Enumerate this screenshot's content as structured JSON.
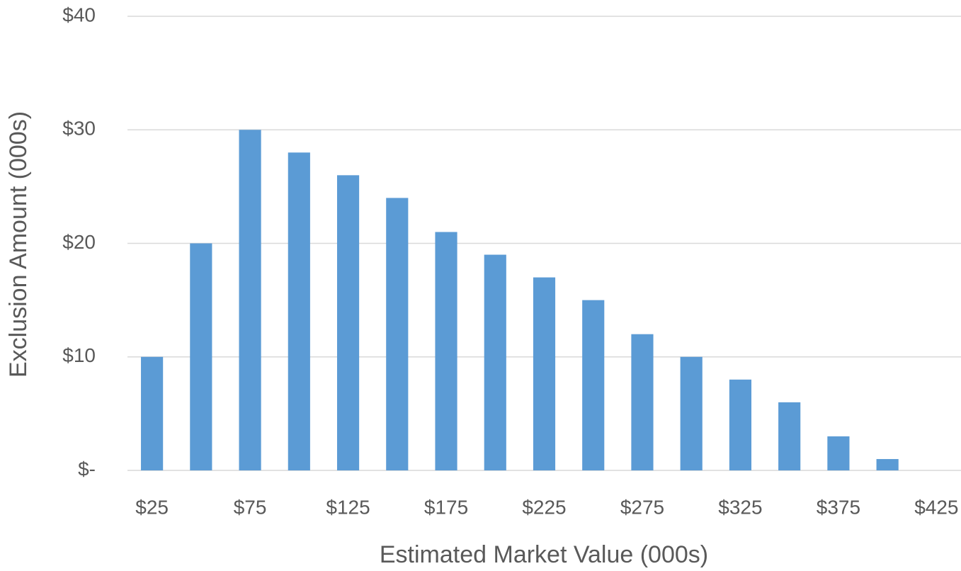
{
  "chart_data": {
    "type": "bar",
    "x_label": "Estimated Market Value (000s)",
    "y_label": "Exclusion Amount (000s)",
    "categories": [
      "$25",
      null,
      "$75",
      null,
      "$125",
      null,
      "$175",
      null,
      "$225",
      null,
      "$275",
      null,
      "$325",
      null,
      "$375",
      null,
      "$425"
    ],
    "values": [
      10,
      20,
      30,
      28,
      26,
      24,
      21,
      19,
      17,
      15,
      12,
      10,
      8,
      6,
      3,
      1,
      0
    ],
    "color": "#5b9bd5",
    "ylim": [
      0,
      40
    ],
    "yticks": [
      {
        "value": 0,
        "label": "$-"
      },
      {
        "value": 10,
        "label": "$10"
      },
      {
        "value": 20,
        "label": "$20"
      },
      {
        "value": 30,
        "label": "$30"
      },
      {
        "value": 40,
        "label": "$40"
      }
    ],
    "grid": true
  }
}
